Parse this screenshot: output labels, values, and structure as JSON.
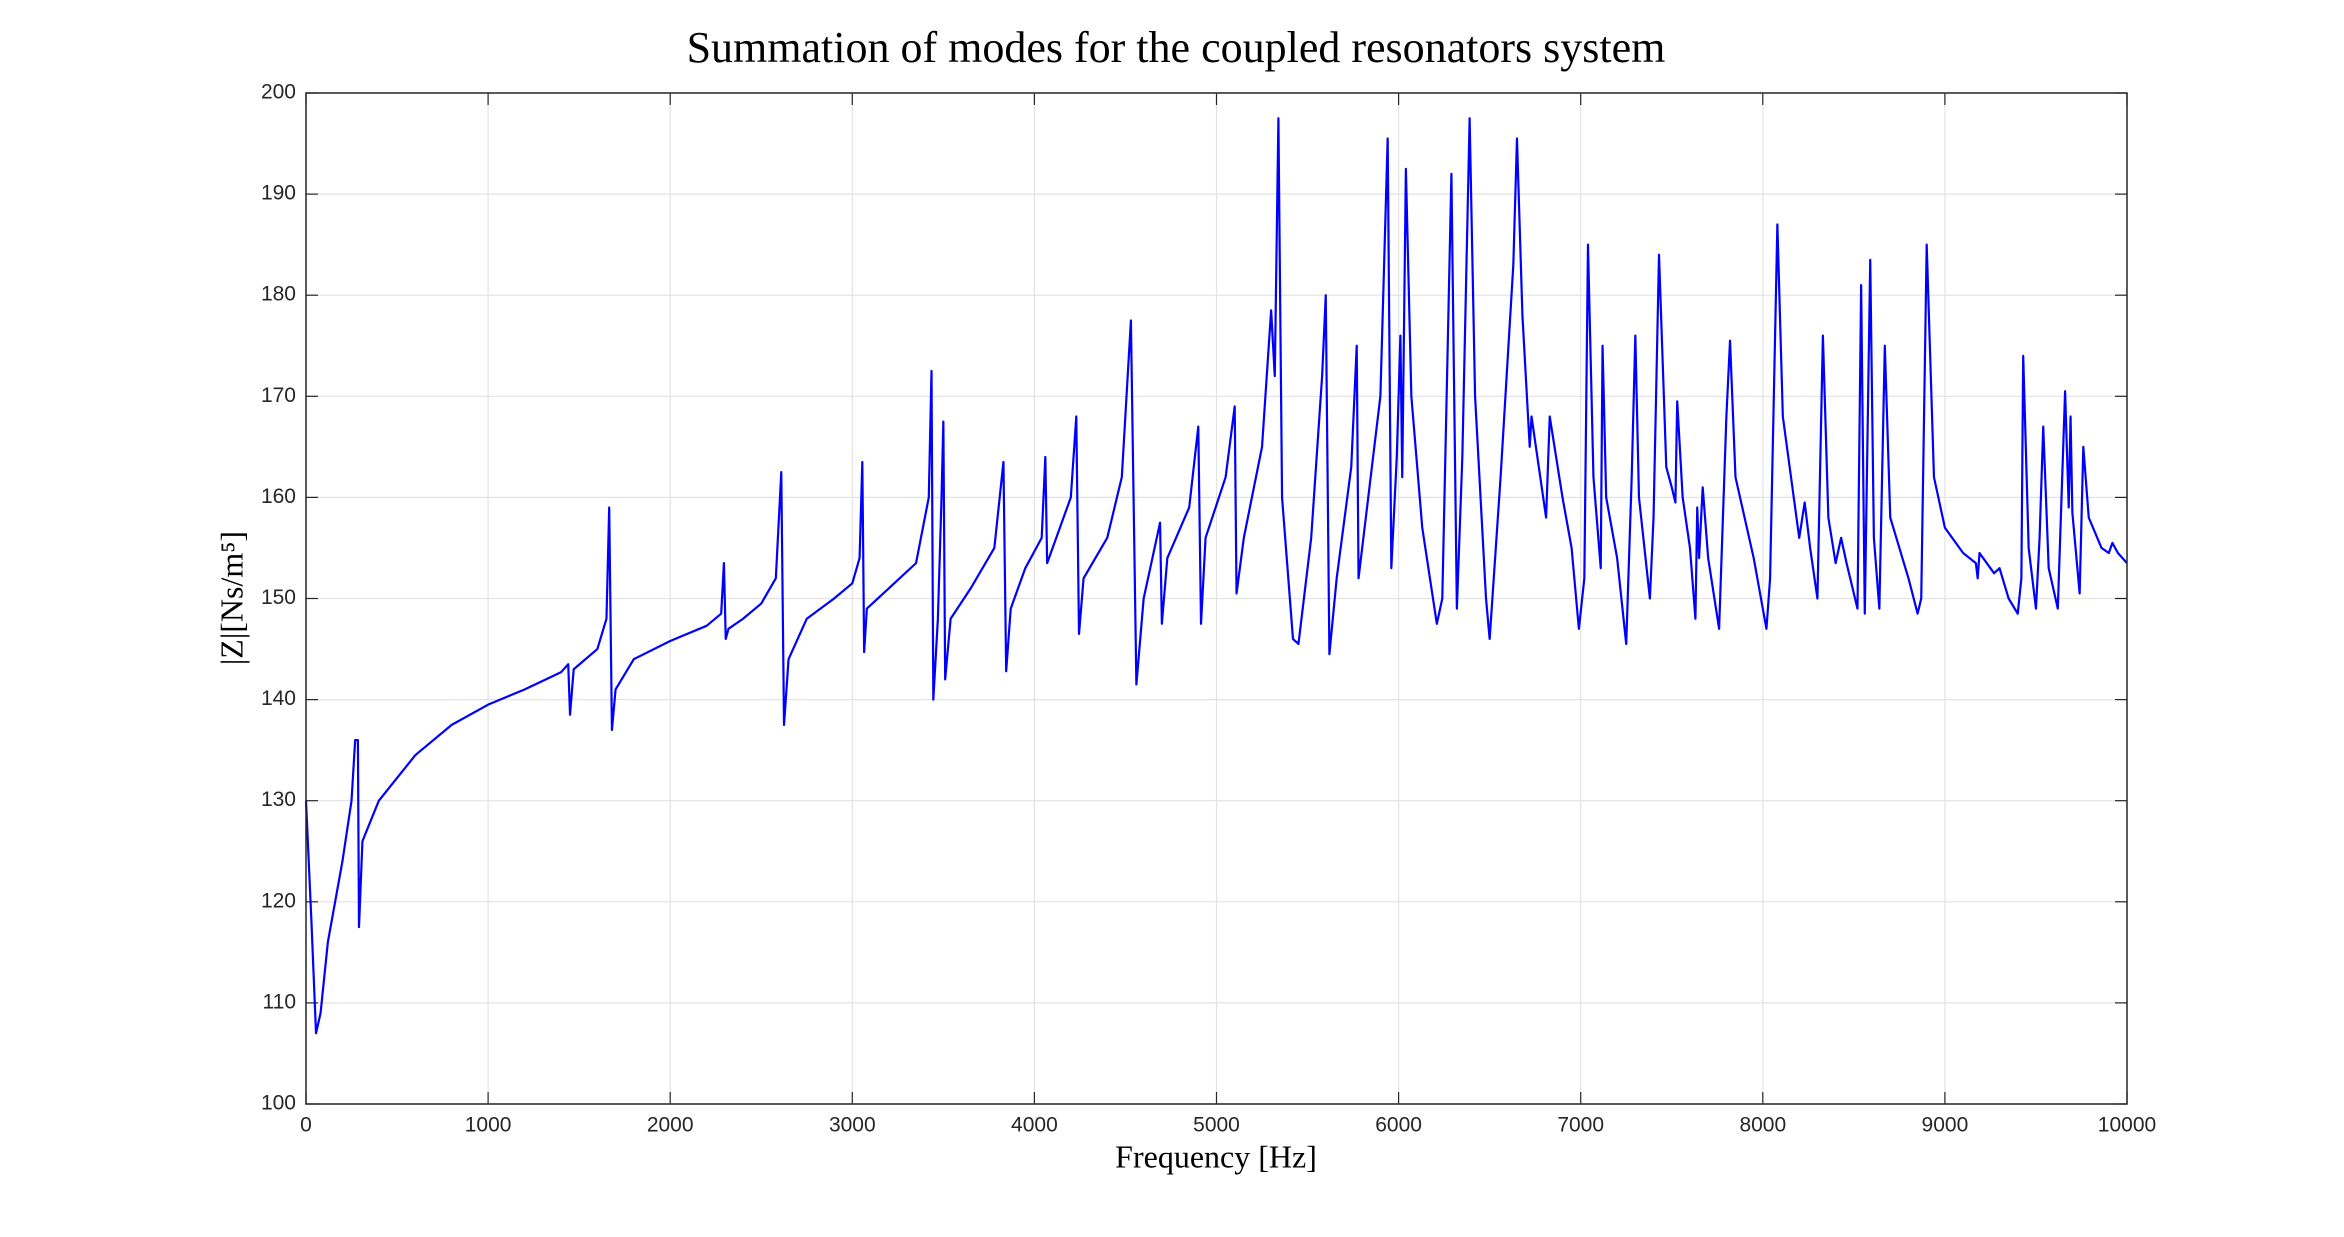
{
  "chart_data": {
    "type": "line",
    "title": "Summation of modes for the coupled resonators system",
    "x_label": "Frequency [Hz]",
    "y_label": "|Z|[Ns/m⁵]",
    "xlim": [
      0,
      10000
    ],
    "xticks": [
      0,
      1000,
      2000,
      3000,
      4000,
      5000,
      6000,
      7000,
      8000,
      9000,
      10000
    ],
    "ylim": [
      100,
      200
    ],
    "yticks": [
      100,
      110,
      120,
      130,
      140,
      150,
      160,
      170,
      180,
      190,
      200
    ],
    "grid": true,
    "x": [
      0,
      30,
      55,
      80,
      120,
      200,
      250,
      270,
      285,
      291,
      310,
      400,
      600,
      800,
      1000,
      1200,
      1400,
      1440,
      1450,
      1470,
      1600,
      1650,
      1665,
      1680,
      1700,
      1800,
      2000,
      2200,
      2280,
      2295,
      2305,
      2320,
      2400,
      2500,
      2580,
      2610,
      2625,
      2650,
      2750,
      2900,
      3000,
      3040,
      3055,
      3065,
      3080,
      3200,
      3350,
      3420,
      3435,
      3445,
      3470,
      3490,
      3500,
      3510,
      3540,
      3650,
      3780,
      3830,
      3845,
      3870,
      3950,
      4040,
      4060,
      4070,
      4100,
      4200,
      4230,
      4245,
      4270,
      4400,
      4480,
      4530,
      4560,
      4600,
      4660,
      4690,
      4700,
      4730,
      4850,
      4900,
      4915,
      4940,
      5050,
      5100,
      5110,
      5150,
      5250,
      5300,
      5320,
      5340,
      5360,
      5420,
      5450,
      5520,
      5580,
      5600,
      5620,
      5660,
      5740,
      5770,
      5780,
      5820,
      5900,
      5940,
      5960,
      5990,
      6010,
      6020,
      6040,
      6070,
      6130,
      6210,
      6240,
      6290,
      6320,
      6350,
      6390,
      6420,
      6480,
      6500,
      6560,
      6630,
      6650,
      6680,
      6720,
      6730,
      6770,
      6810,
      6830,
      6900,
      6950,
      6990,
      7020,
      7040,
      7070,
      7110,
      7120,
      7140,
      7200,
      7250,
      7280,
      7300,
      7320,
      7380,
      7400,
      7430,
      7470,
      7500,
      7520,
      7530,
      7560,
      7600,
      7630,
      7640,
      7650,
      7670,
      7700,
      7760,
      7800,
      7820,
      7850,
      7950,
      8020,
      8040,
      8080,
      8110,
      8200,
      8230,
      8260,
      8300,
      8330,
      8360,
      8400,
      8430,
      8460,
      8520,
      8540,
      8560,
      8590,
      8610,
      8640,
      8670,
      8700,
      8800,
      8850,
      8870,
      8900,
      8940,
      9000,
      9100,
      9170,
      9180,
      9190,
      9250,
      9270,
      9300,
      9350,
      9400,
      9420,
      9430,
      9460,
      9500,
      9520,
      9540,
      9570,
      9620,
      9660,
      9680,
      9690,
      9700,
      9740,
      9760,
      9790,
      9860,
      9900,
      9920,
      9950,
      10000
    ],
    "series": [
      {
        "name": "|Z|",
        "color": "#0000ff",
        "values": [
          130,
          118,
          107,
          109,
          116,
          124,
          130,
          136,
          136,
          117.5,
          126,
          130,
          134.5,
          137.5,
          139.5,
          141,
          142.7,
          143.5,
          138.5,
          143,
          145,
          148,
          159,
          137,
          141,
          144,
          145.8,
          147.3,
          148.5,
          153.5,
          146,
          147,
          148,
          149.5,
          152,
          162.5,
          137.5,
          144,
          148,
          150,
          151.5,
          154,
          163.5,
          144.7,
          149,
          151,
          153.5,
          160,
          172.5,
          140,
          148,
          160,
          167.5,
          142,
          148,
          151,
          155,
          163.5,
          142.8,
          149,
          153,
          156,
          164,
          153.5,
          155,
          160,
          168,
          146.5,
          152,
          156,
          162,
          177.5,
          141.5,
          150,
          155,
          157.5,
          147.5,
          154,
          159,
          167,
          147.5,
          156,
          162,
          169,
          150.5,
          156,
          165,
          178.5,
          172,
          197.5,
          160,
          146,
          145.5,
          156,
          172,
          180,
          144.5,
          152,
          163,
          175,
          152,
          158,
          170,
          195.5,
          153,
          164,
          176,
          162,
          192.5,
          170,
          157,
          147.5,
          150,
          192,
          149,
          164,
          197.5,
          170,
          150,
          146,
          162,
          183,
          195.5,
          178,
          165,
          168,
          163,
          158,
          168,
          160,
          155,
          147,
          152,
          185,
          162,
          153,
          175,
          160,
          154,
          145.5,
          162,
          176,
          160,
          150,
          158,
          184,
          163,
          161,
          159.5,
          169.5,
          160,
          155,
          148,
          159,
          154,
          161,
          154,
          147,
          168,
          175.5,
          162,
          154,
          147,
          152,
          187,
          168,
          156,
          159.5,
          155,
          150,
          176,
          158,
          153.5,
          156,
          153.5,
          149,
          181,
          148.5,
          183.5,
          156,
          149,
          175,
          158,
          152,
          148.5,
          150,
          185,
          162,
          157,
          154.5,
          153.5,
          152,
          154.5,
          153,
          152.5,
          153,
          150,
          148.5,
          152,
          174,
          155,
          149,
          156,
          167,
          153,
          149,
          170.5,
          159,
          168,
          158.5,
          150.5,
          165,
          158,
          155,
          154.5,
          155.5,
          154.5,
          153.5
        ]
      }
    ]
  }
}
